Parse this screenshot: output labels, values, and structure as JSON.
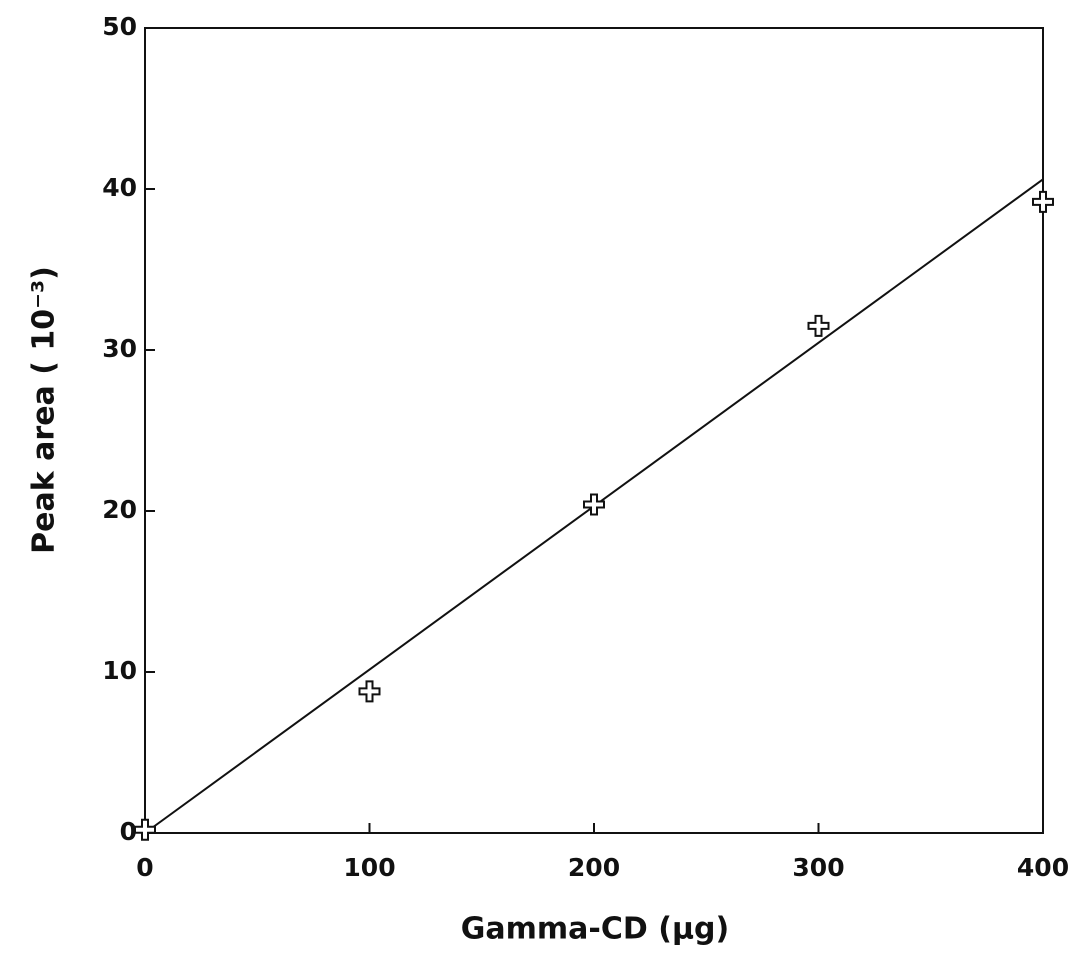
{
  "chart_data": {
    "type": "scatter",
    "xlabel": "Gamma-CD (μg)",
    "ylabel": "Peak area ( 10⁻³)",
    "xlim": [
      0,
      400
    ],
    "xticks": [
      0,
      100,
      200,
      300,
      400
    ],
    "ylim": [
      0,
      50
    ],
    "yticks": [
      0,
      10,
      20,
      30,
      40,
      50
    ],
    "series": [
      {
        "type": "scatter",
        "marker": "plus",
        "color": "#111111",
        "x": [
          0,
          100,
          200,
          300,
          400
        ],
        "values": [
          0.2,
          8.8,
          20.4,
          31.5,
          39.2
        ]
      },
      {
        "type": "line",
        "color": "#111111",
        "x": [
          0,
          400
        ],
        "values": [
          0,
          40.6
        ]
      }
    ]
  }
}
